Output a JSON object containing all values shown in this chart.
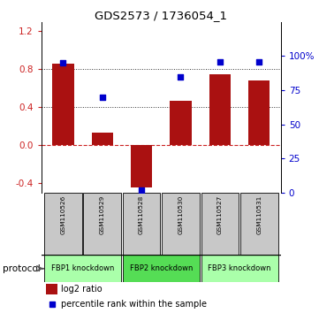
{
  "title": "GDS2573 / 1736054_1",
  "samples": [
    "GSM110526",
    "GSM110529",
    "GSM110528",
    "GSM110530",
    "GSM110527",
    "GSM110531"
  ],
  "log2_ratios": [
    0.86,
    0.13,
    -0.45,
    0.47,
    0.75,
    0.68
  ],
  "percentile_ranks": [
    95,
    70,
    2,
    85,
    96,
    96
  ],
  "bar_color": "#aa1111",
  "dot_color": "#0000cc",
  "ylim_left": [
    -0.5,
    1.3
  ],
  "ylim_right": [
    0,
    125
  ],
  "yticks_left": [
    -0.4,
    0.0,
    0.4,
    0.8,
    1.2
  ],
  "yticks_right": [
    0,
    25,
    50,
    75,
    100
  ],
  "ytick_labels_right": [
    "0",
    "25",
    "50",
    "75",
    "100%"
  ],
  "hlines": [
    0.8,
    0.4
  ],
  "zero_line_color": "#cc2222",
  "dotted_line_color": "#333333",
  "protocols": [
    {
      "label": "FBP1 knockdown",
      "samples": [
        0,
        1
      ],
      "color": "#aaffaa"
    },
    {
      "label": "FBP2 knockdown",
      "samples": [
        2,
        3
      ],
      "color": "#55dd55"
    },
    {
      "label": "FBP3 knockdown",
      "samples": [
        4,
        5
      ],
      "color": "#aaffaa"
    }
  ],
  "protocol_label": "protocol",
  "legend_bar_label": "log2 ratio",
  "legend_dot_label": "percentile rank within the sample",
  "bg_color": "#ffffff",
  "label_area_color": "#c8c8c8"
}
